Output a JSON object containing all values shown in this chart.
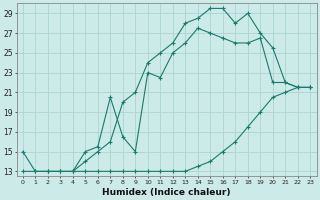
{
  "xlabel": "Humidex (Indice chaleur)",
  "background_color": "#cceae7",
  "line_color": "#1a7a6e",
  "grid_color": "#aad4d0",
  "xlim": [
    -0.5,
    23.5
  ],
  "ylim": [
    12.5,
    30.0
  ],
  "xticks": [
    0,
    1,
    2,
    3,
    4,
    5,
    6,
    7,
    8,
    9,
    10,
    11,
    12,
    13,
    14,
    15,
    16,
    17,
    18,
    19,
    20,
    21,
    22,
    23
  ],
  "yticks": [
    13,
    15,
    17,
    19,
    21,
    23,
    25,
    27,
    29
  ],
  "line1_x": [
    0,
    1,
    2,
    3,
    4,
    5,
    6,
    7,
    8,
    9,
    10,
    11,
    12,
    13,
    14,
    15,
    16,
    17,
    18,
    19,
    20,
    21,
    22,
    23
  ],
  "line1_y": [
    15,
    13,
    13,
    13,
    13,
    14,
    15,
    16,
    20,
    21,
    24,
    25,
    26,
    28,
    28.5,
    29.5,
    29.5,
    28,
    29,
    27,
    25.5,
    22,
    21.5,
    21.5
  ],
  "line2_x": [
    0,
    1,
    2,
    3,
    4,
    5,
    6,
    7,
    8,
    9,
    10,
    11,
    12,
    13,
    14,
    15,
    16,
    17,
    18,
    19,
    20,
    21,
    22,
    23
  ],
  "line2_y": [
    13,
    13,
    13,
    13,
    13,
    13,
    13,
    13,
    13,
    13,
    13,
    13,
    13,
    13,
    13.5,
    14,
    15,
    16,
    17.5,
    19,
    20.5,
    21,
    21.5,
    21.5
  ],
  "line3_x": [
    4,
    5,
    6,
    7,
    8,
    9,
    10,
    11,
    12,
    13,
    14,
    15,
    16,
    17,
    18,
    19,
    20,
    21,
    22,
    23
  ],
  "line3_y": [
    13,
    15,
    15.5,
    20.5,
    16.5,
    15,
    23,
    22.5,
    25,
    26,
    27.5,
    27,
    26.5,
    26,
    26,
    26.5,
    22,
    22,
    21.5,
    21.5
  ]
}
